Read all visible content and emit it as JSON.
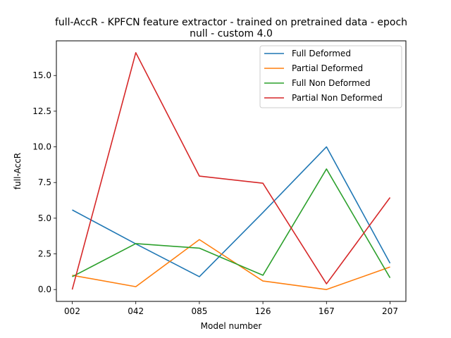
{
  "chart_data": {
    "type": "line",
    "title_line1": "full-AccR - KPFCN feature extractor -  trained on pretrained data -  epoch",
    "title_line2": "null - custom 4.0",
    "xlabel": "Model number",
    "ylabel": "full-AccR",
    "categories": [
      "002",
      "042",
      "085",
      "126",
      "167",
      "207"
    ],
    "ylim": [
      -0.83,
      17.43
    ],
    "yticks": [
      0.0,
      2.5,
      5.0,
      7.5,
      10.0,
      12.5,
      15.0
    ],
    "ytick_labels": [
      "0.0",
      "2.5",
      "5.0",
      "7.5",
      "10.0",
      "12.5",
      "15.0"
    ],
    "legend_position": "top-right",
    "series": [
      {
        "name": "Full Deformed",
        "color": "#1f77b4",
        "values": [
          5.58,
          3.2,
          0.9,
          5.4,
          10.0,
          1.85
        ]
      },
      {
        "name": "Partial Deformed",
        "color": "#ff7f0e",
        "values": [
          1.0,
          0.2,
          3.5,
          0.6,
          0.0,
          1.58
        ]
      },
      {
        "name": "Full Non Deformed",
        "color": "#2ca02c",
        "values": [
          0.9,
          3.22,
          2.9,
          1.0,
          8.45,
          0.82
        ]
      },
      {
        "name": "Partial Non Deformed",
        "color": "#d62728",
        "values": [
          0.0,
          16.6,
          7.95,
          7.45,
          0.4,
          6.45
        ]
      }
    ]
  }
}
